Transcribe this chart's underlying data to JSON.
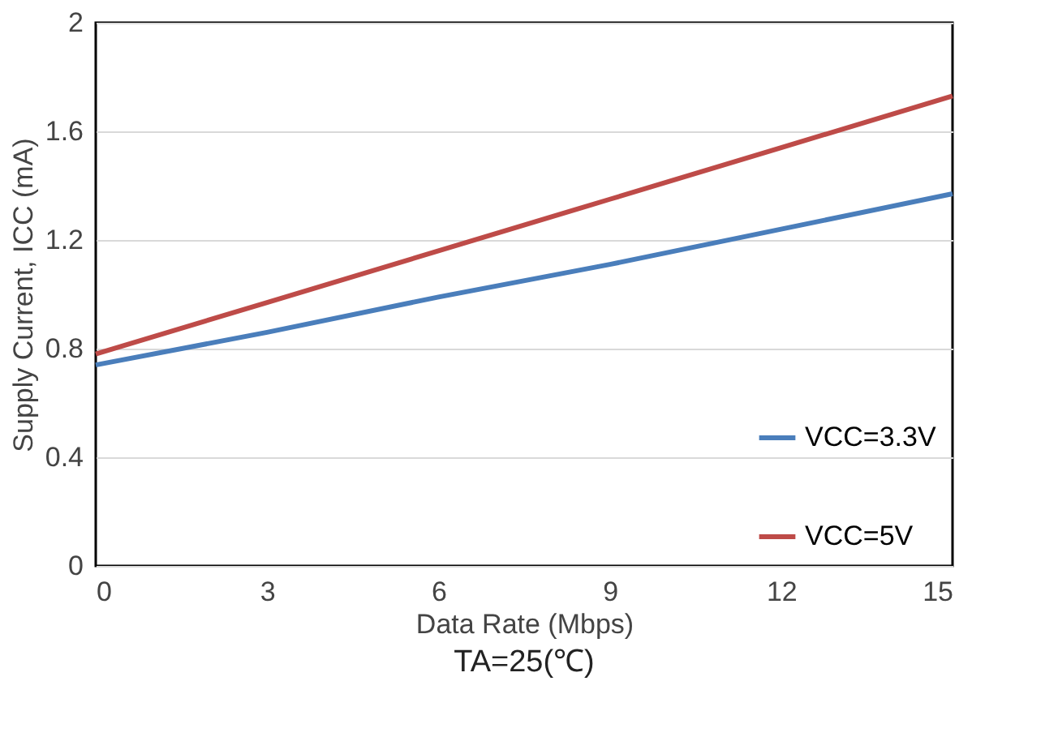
{
  "chart_data": {
    "type": "line",
    "title": "TA=25(℃)",
    "xlabel": "Data Rate (Mbps)",
    "ylabel": "Supply Current, ICC (mA)",
    "x": [
      0,
      3,
      6,
      9,
      12,
      15
    ],
    "series": [
      {
        "name": "VCC=3.3V",
        "color": "#4a7ebb",
        "values": [
          0.74,
          0.86,
          0.99,
          1.11,
          1.24,
          1.37
        ]
      },
      {
        "name": "VCC=5V",
        "color": "#be4b48",
        "values": [
          0.78,
          0.97,
          1.16,
          1.35,
          1.54,
          1.73
        ]
      }
    ],
    "xlim": [
      0,
      15
    ],
    "xticks": [
      0,
      3,
      6,
      9,
      12,
      15
    ],
    "ylim": [
      0,
      2
    ],
    "yticks": [
      0,
      0.4,
      0.8,
      1.2,
      1.6,
      2
    ],
    "grid": "y",
    "legend": "bottom right",
    "marker": "none",
    "line_style": "solid"
  }
}
